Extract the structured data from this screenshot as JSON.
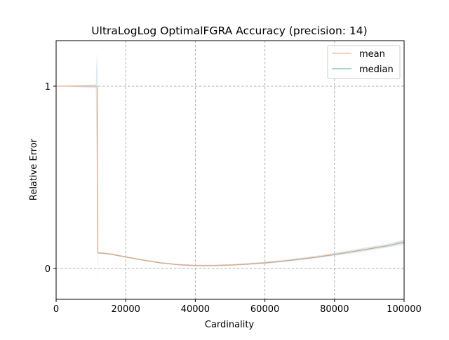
{
  "chart_data": {
    "type": "line",
    "title": "UltraLogLog OptimalFGRA Accuracy (precision: 14)",
    "xlabel": "Cardinality",
    "ylabel": "Relative Error",
    "xlim": [
      0,
      100000
    ],
    "ylim": [
      -0.17,
      1.25
    ],
    "x_ticks": [
      0,
      20000,
      40000,
      60000,
      80000,
      100000
    ],
    "x_tick_labels": [
      "0",
      "20000",
      "40000",
      "60000",
      "80000",
      "100000"
    ],
    "y_ticks": [
      0,
      1
    ],
    "y_tick_labels": [
      "0",
      "1"
    ],
    "grid": true,
    "grid_style": "dashed",
    "legend": {
      "placement": "top-right",
      "entries": [
        "mean",
        "median"
      ]
    },
    "colors": {
      "mean": "#f4a582",
      "median": "#5aae8a",
      "band": "#b8d9ea",
      "grid": "#b0b0b0"
    },
    "series": [
      {
        "name": "mean",
        "x": [
          0,
          11400,
          11800,
          12000,
          14000,
          16000,
          20000,
          25000,
          30000,
          35000,
          40000,
          45000,
          50000,
          55000,
          60000,
          65000,
          70000,
          75000,
          80000,
          85000,
          90000,
          95000,
          100000
        ],
        "values": [
          1.0,
          1.0,
          1.0,
          0.085,
          0.083,
          0.078,
          0.063,
          0.046,
          0.031,
          0.021,
          0.016,
          0.016,
          0.019,
          0.024,
          0.031,
          0.04,
          0.051,
          0.063,
          0.077,
          0.092,
          0.108,
          0.124,
          0.145
        ]
      },
      {
        "name": "median",
        "x": [
          0,
          11400,
          11800,
          12000,
          14000,
          16000,
          20000,
          25000,
          30000,
          35000,
          40000,
          45000,
          50000,
          55000,
          60000,
          65000,
          70000,
          75000,
          80000,
          85000,
          90000,
          95000,
          100000
        ],
        "values": [
          1.0,
          1.0,
          1.0,
          0.085,
          0.082,
          0.077,
          0.062,
          0.045,
          0.03,
          0.02,
          0.015,
          0.015,
          0.018,
          0.023,
          0.03,
          0.039,
          0.05,
          0.062,
          0.076,
          0.091,
          0.107,
          0.123,
          0.144
        ]
      }
    ],
    "spread_band": {
      "x": [
        0,
        11400,
        11700,
        11900,
        12000,
        14000,
        16000,
        20000,
        25000,
        30000,
        35000,
        40000,
        45000,
        50000,
        55000,
        60000,
        65000,
        70000,
        75000,
        80000,
        85000,
        90000,
        95000,
        100000
      ],
      "lower": [
        1.0,
        0.99,
        0.5,
        -0.09,
        0.08,
        0.079,
        0.074,
        0.059,
        0.042,
        0.027,
        0.017,
        0.012,
        0.012,
        0.015,
        0.019,
        0.025,
        0.034,
        0.044,
        0.056,
        0.069,
        0.083,
        0.098,
        0.114,
        0.133
      ],
      "upper": [
        1.0,
        1.01,
        1.19,
        1.1,
        0.09,
        0.087,
        0.082,
        0.067,
        0.05,
        0.035,
        0.025,
        0.02,
        0.02,
        0.023,
        0.029,
        0.037,
        0.046,
        0.058,
        0.07,
        0.085,
        0.101,
        0.118,
        0.134,
        0.157
      ]
    }
  }
}
